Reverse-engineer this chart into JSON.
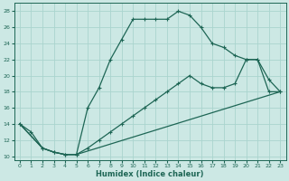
{
  "xlabel": "Humidex (Indice chaleur)",
  "bg_color": "#cce8e4",
  "grid_color": "#aad4ce",
  "line_color": "#1e6655",
  "xlim": [
    0,
    23
  ],
  "ylim": [
    10,
    28
  ],
  "xticks": [
    0,
    1,
    2,
    3,
    4,
    5,
    6,
    7,
    8,
    9,
    10,
    11,
    12,
    13,
    14,
    15,
    16,
    17,
    18,
    19,
    20,
    21,
    22,
    23
  ],
  "yticks": [
    10,
    12,
    14,
    16,
    18,
    20,
    22,
    24,
    26,
    28
  ],
  "line1_x": [
    0,
    1,
    2,
    3,
    4,
    5,
    6,
    7,
    8,
    9,
    10,
    11,
    12,
    13,
    14,
    15,
    16,
    17,
    18,
    19,
    20,
    21,
    22,
    23
  ],
  "line1_y": [
    14,
    13,
    11,
    10.5,
    10.2,
    10.2,
    16,
    18.5,
    22,
    24.5,
    27,
    27,
    27,
    27,
    28,
    27.5,
    26,
    24,
    23.5,
    22.5,
    22,
    22,
    19.5,
    18
  ],
  "line2_x": [
    0,
    2,
    3,
    4,
    5,
    6,
    7,
    8,
    9,
    10,
    11,
    12,
    13,
    14,
    15,
    16,
    17,
    18,
    19,
    20,
    21,
    22,
    23
  ],
  "line2_y": [
    14,
    11,
    10.5,
    10.2,
    10.2,
    11,
    12,
    13,
    14,
    15,
    16,
    17,
    18,
    19,
    20,
    19,
    18.5,
    18.5,
    19,
    22,
    22,
    18,
    18
  ],
  "line3_x": [
    0,
    2,
    3,
    4,
    5,
    23
  ],
  "line3_y": [
    14,
    11,
    10.5,
    10.2,
    10.2,
    18
  ]
}
